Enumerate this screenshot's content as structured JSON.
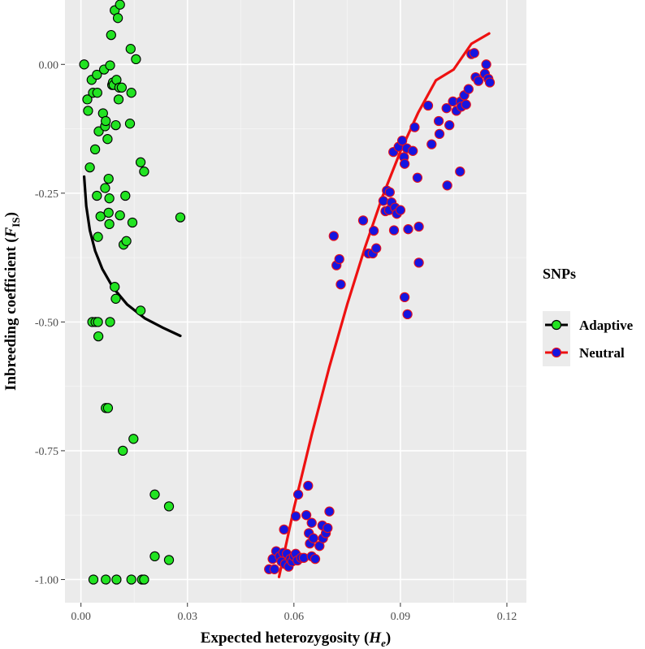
{
  "chart_data": {
    "type": "scatter",
    "xlabel_main": "Expected heterozygosity (",
    "xlabel_var": "H",
    "xlabel_sub": "e",
    "xlabel_end": ")",
    "ylabel_main": "Inbreeding coefficient (",
    "ylabel_var": "F",
    "ylabel_sub": "IS",
    "ylabel_end": ")",
    "xlim": [
      -0.0045,
      0.1255
    ],
    "ylim": [
      -1.045,
      0.125
    ],
    "x_ticks": [
      0.0,
      0.03,
      0.06,
      0.09,
      0.12
    ],
    "x_tick_labels": [
      "0.00",
      "0.03",
      "0.06",
      "0.09",
      "0.12"
    ],
    "y_ticks": [
      -1.0,
      -0.75,
      -0.5,
      -0.25,
      0.0
    ],
    "y_tick_labels": [
      "-1.00",
      "-0.75",
      "-0.50",
      "-0.25",
      "0.00"
    ],
    "legend": {
      "title": "SNPs",
      "position": "right",
      "entries": [
        {
          "label": "Adaptive",
          "point_fill": "#22e322",
          "point_stroke": "#000000",
          "line_color": "#000000"
        },
        {
          "label": "Neutral",
          "point_fill": "#1515e0",
          "point_stroke": "#e8101a",
          "line_color": "#ee1111"
        }
      ]
    },
    "panel_background": "#ebebeb",
    "series": [
      {
        "name": "Adaptive",
        "fill": "#22e322",
        "stroke": "#000000",
        "points": [
          [
            0.0009,
            0.0
          ],
          [
            0.0018,
            -0.068
          ],
          [
            0.002,
            -0.09
          ],
          [
            0.0025,
            -0.2
          ],
          [
            0.003,
            -0.03
          ],
          [
            0.0034,
            -0.055
          ],
          [
            0.004,
            -0.165
          ],
          [
            0.0045,
            -0.02
          ],
          [
            0.0046,
            -0.055
          ],
          [
            0.005,
            -0.13
          ],
          [
            0.0045,
            -0.255
          ],
          [
            0.0048,
            -0.335
          ],
          [
            0.0055,
            -0.295
          ],
          [
            0.0062,
            -0.095
          ],
          [
            0.0065,
            -0.01
          ],
          [
            0.0068,
            -0.12
          ],
          [
            0.0068,
            -0.24
          ],
          [
            0.007,
            -0.11
          ],
          [
            0.0075,
            -0.145
          ],
          [
            0.0078,
            -0.222
          ],
          [
            0.0078,
            -0.288
          ],
          [
            0.008,
            -0.31
          ],
          [
            0.008,
            -0.26
          ],
          [
            0.0082,
            -0.002
          ],
          [
            0.0085,
            0.057
          ],
          [
            0.0088,
            -0.04
          ],
          [
            0.009,
            -0.035
          ],
          [
            0.0092,
            -0.04
          ],
          [
            0.0095,
            0.105
          ],
          [
            0.0098,
            -0.118
          ],
          [
            0.01,
            -0.03
          ],
          [
            0.0104,
            0.09
          ],
          [
            0.0106,
            -0.068
          ],
          [
            0.0108,
            -0.045
          ],
          [
            0.011,
            0.116
          ],
          [
            0.011,
            -0.293
          ],
          [
            0.0115,
            -0.045
          ],
          [
            0.012,
            -0.35
          ],
          [
            0.0125,
            -0.255
          ],
          [
            0.0128,
            -0.343
          ],
          [
            0.0138,
            -0.115
          ],
          [
            0.014,
            0.03
          ],
          [
            0.0142,
            -0.055
          ],
          [
            0.0145,
            -0.307
          ],
          [
            0.0155,
            0.01
          ],
          [
            0.0168,
            -0.19
          ],
          [
            0.0178,
            -0.208
          ],
          [
            0.028,
            -0.297
          ],
          [
            0.0032,
            -0.5
          ],
          [
            0.0041,
            -0.5
          ],
          [
            0.0048,
            -0.5
          ],
          [
            0.0049,
            -0.528
          ],
          [
            0.0082,
            -0.5
          ],
          [
            0.0095,
            -0.432
          ],
          [
            0.0098,
            -0.455
          ],
          [
            0.0168,
            -0.478
          ],
          [
            0.007,
            -0.667
          ],
          [
            0.0076,
            -0.667
          ],
          [
            0.0118,
            -0.75
          ],
          [
            0.0148,
            -0.727
          ],
          [
            0.0208,
            -0.835
          ],
          [
            0.0248,
            -0.858
          ],
          [
            0.0208,
            -0.955
          ],
          [
            0.0248,
            -0.962
          ],
          [
            0.0035,
            -1.0
          ],
          [
            0.007,
            -1.0
          ],
          [
            0.01,
            -1.0
          ],
          [
            0.0142,
            -1.0
          ],
          [
            0.0172,
            -1.0
          ],
          [
            0.0178,
            -1.0
          ]
        ],
        "trend": [
          [
            0.0009,
            -0.218
          ],
          [
            0.0015,
            -0.275
          ],
          [
            0.0025,
            -0.322
          ],
          [
            0.004,
            -0.362
          ],
          [
            0.006,
            -0.397
          ],
          [
            0.009,
            -0.433
          ],
          [
            0.013,
            -0.466
          ],
          [
            0.018,
            -0.493
          ],
          [
            0.023,
            -0.511
          ],
          [
            0.028,
            -0.527
          ]
        ]
      },
      {
        "name": "Neutral",
        "fill": "#1515e0",
        "stroke": "#e8101a",
        "points": [
          [
            0.053,
            -0.98
          ],
          [
            0.054,
            -0.96
          ],
          [
            0.0545,
            -0.98
          ],
          [
            0.055,
            -0.945
          ],
          [
            0.056,
            -0.955
          ],
          [
            0.0565,
            -0.965
          ],
          [
            0.057,
            -0.948
          ],
          [
            0.0572,
            -0.903
          ],
          [
            0.0575,
            -0.97
          ],
          [
            0.058,
            -0.95
          ],
          [
            0.0585,
            -0.975
          ],
          [
            0.059,
            -0.96
          ],
          [
            0.0595,
            -0.965
          ],
          [
            0.06,
            -0.955
          ],
          [
            0.0605,
            -0.95
          ],
          [
            0.061,
            -0.963
          ],
          [
            0.0605,
            -0.877
          ],
          [
            0.0612,
            -0.835
          ],
          [
            0.062,
            -0.958
          ],
          [
            0.0628,
            -0.958
          ],
          [
            0.0635,
            -0.875
          ],
          [
            0.064,
            -0.818
          ],
          [
            0.0642,
            -0.91
          ],
          [
            0.0645,
            -0.93
          ],
          [
            0.065,
            -0.955
          ],
          [
            0.065,
            -0.89
          ],
          [
            0.0655,
            -0.92
          ],
          [
            0.066,
            -0.96
          ],
          [
            0.0672,
            -0.935
          ],
          [
            0.068,
            -0.895
          ],
          [
            0.0682,
            -0.92
          ],
          [
            0.069,
            -0.91
          ],
          [
            0.0695,
            -0.9
          ],
          [
            0.07,
            -0.868
          ],
          [
            0.0712,
            -0.333
          ],
          [
            0.072,
            -0.39
          ],
          [
            0.0728,
            -0.378
          ],
          [
            0.0732,
            -0.427
          ],
          [
            0.0795,
            -0.303
          ],
          [
            0.081,
            -0.367
          ],
          [
            0.0822,
            -0.367
          ],
          [
            0.0825,
            -0.323
          ],
          [
            0.0832,
            -0.357
          ],
          [
            0.0852,
            -0.265
          ],
          [
            0.0858,
            -0.285
          ],
          [
            0.0862,
            -0.245
          ],
          [
            0.0868,
            -0.283
          ],
          [
            0.087,
            -0.248
          ],
          [
            0.0875,
            -0.268
          ],
          [
            0.088,
            -0.17
          ],
          [
            0.0882,
            -0.322
          ],
          [
            0.0885,
            -0.278
          ],
          [
            0.089,
            -0.29
          ],
          [
            0.0895,
            -0.16
          ],
          [
            0.09,
            -0.283
          ],
          [
            0.0905,
            -0.148
          ],
          [
            0.091,
            -0.18
          ],
          [
            0.0912,
            -0.193
          ],
          [
            0.0912,
            -0.452
          ],
          [
            0.0918,
            -0.163
          ],
          [
            0.092,
            -0.485
          ],
          [
            0.0922,
            -0.32
          ],
          [
            0.0935,
            -0.168
          ],
          [
            0.094,
            -0.122
          ],
          [
            0.0948,
            -0.22
          ],
          [
            0.0952,
            -0.315
          ],
          [
            0.0952,
            -0.385
          ],
          [
            0.0978,
            -0.08
          ],
          [
            0.0988,
            -0.155
          ],
          [
            0.1008,
            -0.11
          ],
          [
            0.101,
            -0.135
          ],
          [
            0.103,
            -0.085
          ],
          [
            0.1032,
            -0.235
          ],
          [
            0.1038,
            -0.118
          ],
          [
            0.1048,
            -0.072
          ],
          [
            0.1058,
            -0.09
          ],
          [
            0.1068,
            -0.208
          ],
          [
            0.107,
            -0.072
          ],
          [
            0.1072,
            -0.082
          ],
          [
            0.108,
            -0.06
          ],
          [
            0.1085,
            -0.078
          ],
          [
            0.1092,
            -0.048
          ],
          [
            0.11,
            0.02
          ],
          [
            0.1108,
            0.022
          ],
          [
            0.1112,
            -0.025
          ],
          [
            0.112,
            -0.032
          ],
          [
            0.1138,
            -0.018
          ],
          [
            0.1142,
            0.0
          ],
          [
            0.1148,
            -0.028
          ],
          [
            0.1152,
            -0.035
          ]
        ],
        "trend": [
          [
            0.0558,
            -0.995
          ],
          [
            0.06,
            -0.862
          ],
          [
            0.065,
            -0.719
          ],
          [
            0.07,
            -0.587
          ],
          [
            0.075,
            -0.466
          ],
          [
            0.08,
            -0.356
          ],
          [
            0.085,
            -0.256
          ],
          [
            0.09,
            -0.169
          ],
          [
            0.095,
            -0.094
          ],
          [
            0.1,
            -0.031
          ],
          [
            0.105,
            -0.01
          ],
          [
            0.11,
            0.04
          ],
          [
            0.115,
            0.06
          ]
        ]
      }
    ]
  }
}
